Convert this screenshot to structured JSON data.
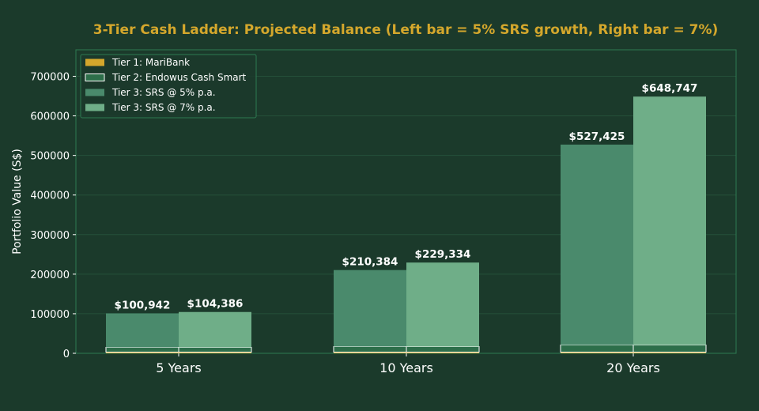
{
  "chart_data": {
    "type": "bar",
    "title": "3-Tier Cash Ladder: Projected Balance (Left bar = 5% SRS growth, Right bar = 7%)",
    "xlabel": "",
    "ylabel": "Portfolio Value (S$)",
    "categories": [
      "5 Years",
      "10 Years",
      "20 Years"
    ],
    "ylim": [
      0,
      767000
    ],
    "yticks": [
      0,
      100000,
      200000,
      300000,
      400000,
      500000,
      600000,
      700000
    ],
    "ytick_labels": [
      "0",
      "100000",
      "200000",
      "300000",
      "400000",
      "500000",
      "600000",
      "700000"
    ],
    "grid": true,
    "legend_position": "top-left",
    "stacked": true,
    "series": [
      {
        "name": "Tier 1: MariBank",
        "group": "left",
        "values": [
          3000,
          3000,
          3000
        ],
        "color": "#d4a72c"
      },
      {
        "name": "Tier 2: Endowus Cash Smart",
        "group": "left",
        "values": [
          12000,
          14000,
          18000
        ],
        "color": "#2d6e4a",
        "edge": "#ffffff"
      },
      {
        "name": "Tier 3: SRS @ 5% p.a.",
        "group": "left",
        "values": [
          85942,
          193384,
          506425
        ],
        "color": "#4a8a6c"
      },
      {
        "name": "Tier 1: MariBank",
        "group": "right",
        "values": [
          3000,
          3000,
          3000
        ],
        "color": "#d4a72c",
        "in_legend": false
      },
      {
        "name": "Tier 2: Endowus Cash Smart",
        "group": "right",
        "values": [
          12000,
          14000,
          18000
        ],
        "color": "#2d6e4a",
        "edge": "#ffffff",
        "in_legend": false
      },
      {
        "name": "Tier 3: SRS @ 7% p.a.",
        "group": "right",
        "values": [
          89386,
          212334,
          627747
        ],
        "color": "#6fae88"
      }
    ],
    "totals_left": [
      "$100,942",
      "$210,384",
      "$527,425"
    ],
    "totals_right": [
      "$104,386",
      "$229,334",
      "$648,747"
    ],
    "legend": [
      {
        "label": "Tier 1: MariBank",
        "color": "#d4a72c"
      },
      {
        "label": "Tier 2: Endowus Cash Smart",
        "color": "#2d6e4a",
        "edge": "#ffffff"
      },
      {
        "label": "Tier 3: SRS @ 5% p.a.",
        "color": "#4a8a6c"
      },
      {
        "label": "Tier 3: SRS @ 7% p.a.",
        "color": "#6fae88"
      }
    ],
    "colors": {
      "background": "#1b3a2b",
      "title": "#d4a72c",
      "frame": "#2e7a52",
      "grid": "#25503a",
      "text": "#ffffff"
    }
  }
}
